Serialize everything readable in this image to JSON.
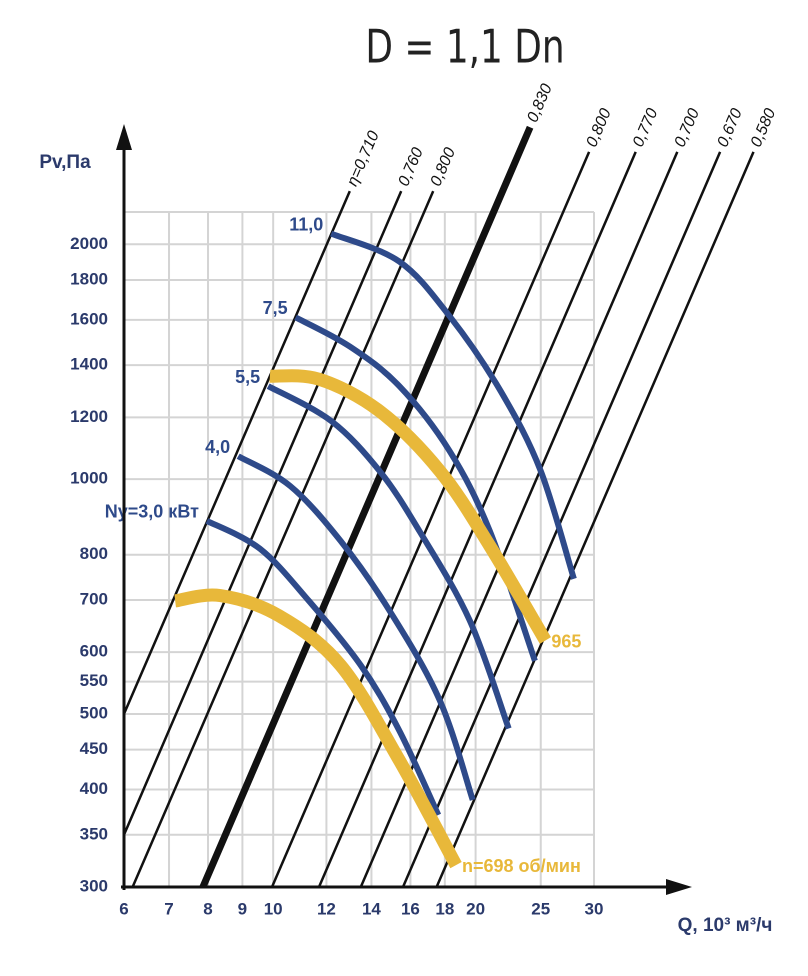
{
  "chart_data": {
    "type": "line",
    "title": "D = 1,1 Dn",
    "y_label": "Pv,Па",
    "x_label": "Q, 10³ м³/ч",
    "log_x": true,
    "log_y": true,
    "grid": true,
    "xlim": [
      6,
      30
    ],
    "ylim": [
      300,
      2200
    ],
    "xticks": [
      6,
      7,
      8,
      9,
      10,
      12,
      14,
      16,
      18,
      20,
      25,
      30
    ],
    "yticks": [
      300,
      350,
      400,
      450,
      500,
      550,
      600,
      700,
      800,
      1000,
      1200,
      1400,
      1600,
      1800,
      2000
    ],
    "efficiency_color": "#111111",
    "efficiency_lines": [
      {
        "name": "η=0,710",
        "x": [
          6,
          13.0
        ],
        "values": [
          500,
          2340
        ]
      },
      {
        "name": "0,760",
        "x": [
          6,
          15.5
        ],
        "values": [
          350,
          2340
        ]
      },
      {
        "name": "0,800",
        "x": [
          6.18,
          17.3
        ],
        "values": [
          300,
          2340
        ]
      },
      {
        "name": "0,830",
        "x": [
          7.86,
          24.1
        ],
        "values": [
          300,
          2825
        ],
        "emphasis": true
      },
      {
        "name": "0,800",
        "x": [
          9.96,
          29.5
        ],
        "values": [
          300,
          2627
        ]
      },
      {
        "name": "0,770",
        "x": [
          11.7,
          34.6
        ],
        "values": [
          300,
          2627
        ]
      },
      {
        "name": "0,700",
        "x": [
          13.5,
          39.9
        ],
        "values": [
          300,
          2627
        ]
      },
      {
        "name": "0,670",
        "x": [
          15.6,
          46.2
        ],
        "values": [
          300,
          2627
        ]
      },
      {
        "name": "0,580",
        "x": [
          17.5,
          51.8
        ],
        "values": [
          300,
          2627
        ]
      }
    ],
    "series": [
      {
        "name": "11,0",
        "color": "#2e4a8a",
        "label_at": "start",
        "x": [
          12.2,
          15.4,
          18.3,
          21.8,
          25.0,
          28.0
        ],
        "values": [
          2064,
          1901,
          1617,
          1296,
          1024,
          745
        ]
      },
      {
        "name": "7,5",
        "color": "#2e4a8a",
        "label_at": "start",
        "x": [
          10.8,
          13.0,
          15.4,
          18.3,
          21.0,
          24.5
        ],
        "values": [
          1612,
          1479,
          1316,
          1086,
          858,
          585
        ]
      },
      {
        "name": "5,5",
        "color": "#2e4a8a",
        "label_at": "start",
        "x": [
          9.83,
          12.2,
          14.4,
          16.5,
          19.6,
          22.4
        ],
        "values": [
          1316,
          1187,
          1024,
          858,
          659,
          479
        ]
      },
      {
        "name": "4,0",
        "color": "#2e4a8a",
        "label_at": "start",
        "x": [
          8.87,
          10.6,
          12.6,
          14.9,
          17.7,
          19.8
        ],
        "values": [
          1070,
          980,
          833,
          678,
          520,
          388
        ]
      },
      {
        "name": "Ny=3,0 кВт",
        "color": "#2e4a8a",
        "label_at": "start",
        "x": [
          7.97,
          9.56,
          11.3,
          13.5,
          15.4,
          17.6
        ],
        "values": [
          884,
          814,
          698,
          577,
          476,
          371
        ]
      },
      {
        "name": "965",
        "color": "#e8b83a",
        "label_at": "end",
        "emphasis": true,
        "x": [
          9.89,
          11.7,
          14.4,
          17.7,
          21.0,
          25.4
        ],
        "values": [
          1355,
          1343,
          1222,
          1024,
          821,
          621
        ]
      },
      {
        "name": "n=698 об/мин",
        "color": "#e8b83a",
        "label_at": "end",
        "emphasis": true,
        "x": [
          7.15,
          8.34,
          10.2,
          12.6,
          15.4,
          18.7
        ],
        "values": [
          698,
          709,
          668,
          577,
          436,
          320
        ]
      }
    ]
  }
}
